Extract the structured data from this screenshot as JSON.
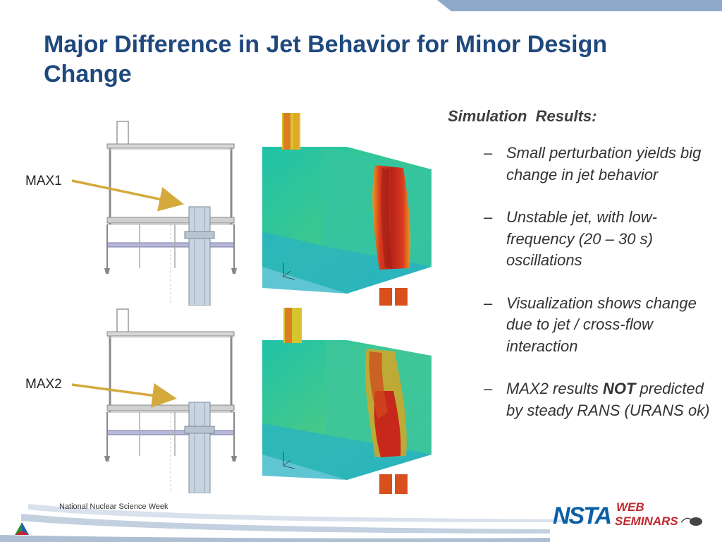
{
  "slide": {
    "title": "Major Difference in Jet Behavior for Minor Design Change",
    "labels": {
      "max1": "MAX1",
      "max2": "MAX2"
    },
    "results": {
      "heading": "Simulation  Results:",
      "bullets": [
        {
          "dash": "–",
          "text": "Small perturbation yields big change in jet behavior"
        },
        {
          "dash": "–",
          "text": "Unstable jet, with low-frequency (20 – 30 s) oscillations"
        },
        {
          "dash": "–",
          "text": "Visualization shows change due to jet / cross-flow interaction"
        },
        {
          "dash": "–",
          "pre": "MAX2 results ",
          "bold": "NOT",
          "post": " predicted by steady RANS (URANS ok)"
        }
      ]
    },
    "footer": {
      "event": "National Nuclear Science Week",
      "logo_nsta": "NSTA",
      "logo_web": "WEB",
      "logo_seminars": "SEMINARS"
    },
    "colors": {
      "title": "#1F497D",
      "top_bar": "#8EA9C9",
      "arrow": "#D4AA3C",
      "nsta_blue": "#0B5FA5",
      "nsta_red": "#C0282D"
    }
  }
}
